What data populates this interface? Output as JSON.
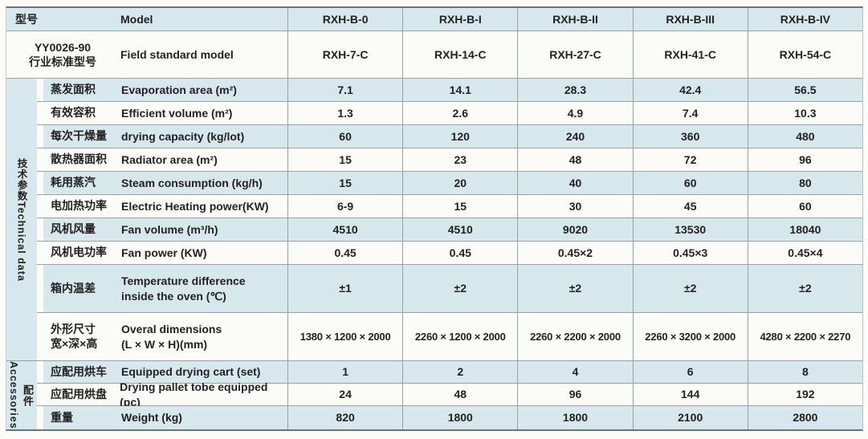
{
  "colors": {
    "row_blue": "#d7e8ec",
    "row_white": "#fbfbf8",
    "grid_line": "#98a2a3",
    "outer_line": "#6a7474",
    "text": "#222222"
  },
  "sections": {
    "technical": {
      "cjk": "技术参数",
      "en": "Technical data"
    },
    "accessories": {
      "cjk": "配件",
      "en": "Accessories"
    }
  },
  "header": {
    "model_cn": "型号",
    "model_en": "Model",
    "models": [
      "RXH-B-0",
      "RXH-B-I",
      "RXH-B-II",
      "RXH-B-III",
      "RXH-B-IV"
    ],
    "field_cn_line1": "YY0026-90",
    "field_cn_line2": "行业标准型号",
    "field_en": "Field standard model",
    "field_models": [
      "RXH-7-C",
      "RXH-14-C",
      "RXH-27-C",
      "RXH-41-C",
      "RXH-54-C"
    ]
  },
  "rows": [
    {
      "cn": "蒸发面积",
      "en": "Evaporation area (m²)",
      "values": [
        "7.1",
        "14.1",
        "28.3",
        "42.4",
        "56.5"
      ]
    },
    {
      "cn": "有效容积",
      "en": "Efficient volume (m²)",
      "values": [
        "1.3",
        "2.6",
        "4.9",
        "7.4",
        "10.3"
      ]
    },
    {
      "cn": "每次干燥量",
      "en": "drying capacity (kg/lot)",
      "values": [
        "60",
        "120",
        "240",
        "360",
        "480"
      ]
    },
    {
      "cn": "散热器面积",
      "en": "Radiator area (m²)",
      "values": [
        "15",
        "23",
        "48",
        "72",
        "96"
      ]
    },
    {
      "cn": "耗用蒸汽",
      "en": "Steam consumption (kg/h)",
      "values": [
        "15",
        "20",
        "40",
        "60",
        "80"
      ]
    },
    {
      "cn": "电加热功率",
      "en": "Electric Heating power(KW)",
      "values": [
        "6-9",
        "15",
        "30",
        "45",
        "60"
      ]
    },
    {
      "cn": "风机风量",
      "en": "Fan volume (m³/h)",
      "values": [
        "4510",
        "4510",
        "9020",
        "13530",
        "18040"
      ]
    },
    {
      "cn": "风机电功率",
      "en": "Fan power (KW)",
      "values": [
        "0.45",
        "0.45",
        "0.45×2",
        "0.45×3",
        "0.45×4"
      ]
    },
    {
      "cn": "箱内温差",
      "en": "Temperature difference",
      "en2": "inside the oven (℃)",
      "values": [
        "±1",
        "±2",
        "±2",
        "±2",
        "±2"
      ]
    },
    {
      "cn": "外形尺寸",
      "cn2": "宽×深×高",
      "en": "Overal dimensions",
      "en2": "(L × W × H)(mm)",
      "values": [
        "1380 × 1200 × 2000",
        "2260 × 1200 × 2000",
        "2260 × 2200 × 2000",
        "2260 × 3200 × 2000",
        "4280 × 2200 × 2270"
      ]
    },
    {
      "cn": "应配用烘车",
      "en": "Equipped drying cart (set)",
      "values": [
        "1",
        "2",
        "4",
        "6",
        "8"
      ]
    },
    {
      "cn": "应配用烘盘",
      "en": "Drying pallet tobe equipped (pc)",
      "values": [
        "24",
        "48",
        "96",
        "144",
        "192"
      ]
    },
    {
      "cn": "重量",
      "en": "Weight (kg)",
      "values": [
        "820",
        "1800",
        "1800",
        "2100",
        "2800"
      ]
    }
  ]
}
